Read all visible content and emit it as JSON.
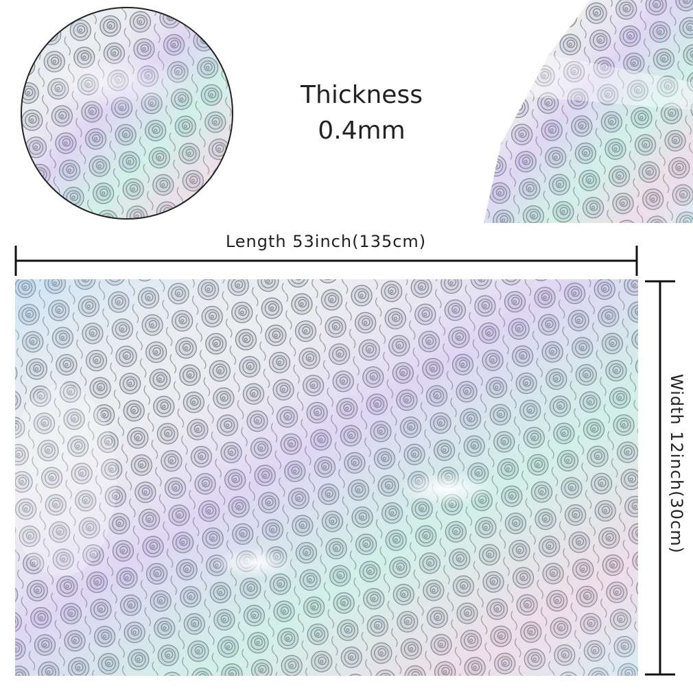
{
  "thickness": {
    "label": "Thickness",
    "value": "0.4mm"
  },
  "length": "Length 53inch(135cm)",
  "width": "Width 12inch(30cm)"
}
